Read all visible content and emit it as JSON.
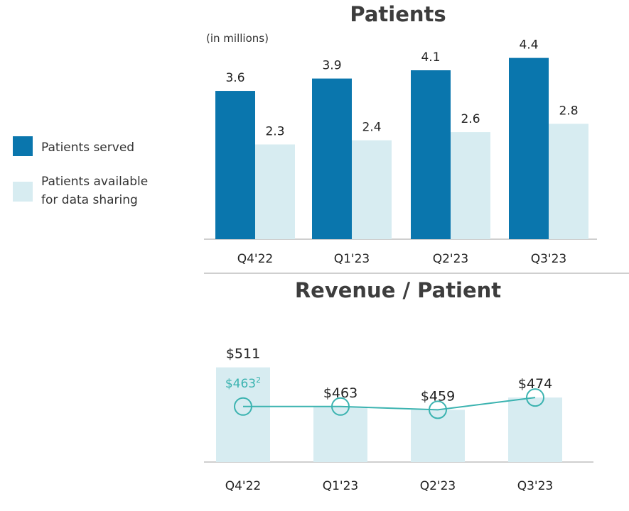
{
  "colors": {
    "served": "#0a76ad",
    "available": "#d7ecf1",
    "revenue_bar": "#d7ecf1",
    "line": "#3bb3b0",
    "axis": "#bfbfbf"
  },
  "legend": {
    "served_label": "Patients served",
    "available_label_line1": "Patients available",
    "available_label_line2": "for data sharing"
  },
  "chart_data": [
    {
      "type": "bar",
      "title": "Patients",
      "unit_label": "(in millions)",
      "categories": [
        "Q4'22",
        "Q1'23",
        "Q2'23",
        "Q3'23"
      ],
      "series": [
        {
          "name": "Patients served",
          "values": [
            3.6,
            3.9,
            4.1,
            4.4
          ],
          "labels": [
            "3.6",
            "3.9",
            "4.1",
            "4.4"
          ]
        },
        {
          "name": "Patients available for data sharing",
          "values": [
            2.3,
            2.4,
            2.6,
            2.8
          ],
          "labels": [
            "2.3",
            "2.4",
            "2.6",
            "2.8"
          ]
        }
      ],
      "ylim": [
        0,
        4.6
      ]
    },
    {
      "type": "bar",
      "title": "Revenue / Patient",
      "categories": [
        "Q4'22",
        "Q1'23",
        "Q2'23",
        "Q3'23"
      ],
      "bar_values": [
        511,
        463,
        459,
        474
      ],
      "bar_labels": [
        "$511",
        "$463",
        "$459",
        "$474"
      ],
      "line_values": [
        463,
        463,
        459,
        474
      ],
      "line_labels": [
        "$463",
        "",
        "",
        ""
      ],
      "footnote_marker": "2",
      "ylim": [
        395,
        515
      ]
    }
  ]
}
